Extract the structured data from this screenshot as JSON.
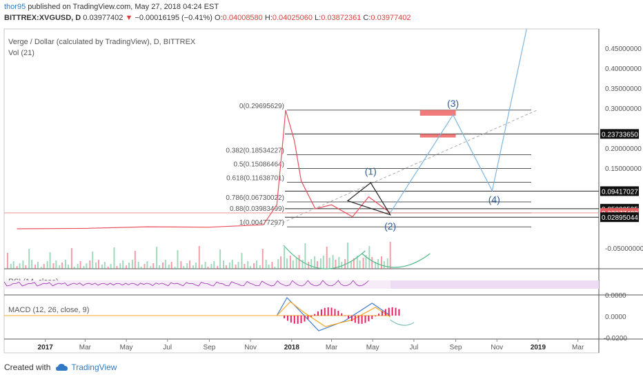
{
  "header": {
    "user": "thor95",
    "published": "published on TradingView.com, May 27, 2018 04:24 EST",
    "symbol": "BITTREX:XVGUSD, D",
    "last": "0.03977402",
    "arrow": "▼",
    "change": "−0.00016195 (−0.41%)",
    "o_label": "O:",
    "o_val": "0.04008580",
    "h_label": "H:",
    "h_val": "0.04025060",
    "l_label": "L:",
    "l_val": "0.03872361",
    "c_label": "C:",
    "c_val": "0.03977402"
  },
  "footer": {
    "created_with": "Created with",
    "brand": "TradingView"
  },
  "colors": {
    "candle_up": "#53b987",
    "candle_down": "#eb4d5c",
    "price_line": "#9b9b9b",
    "fib_line": "#555555",
    "projection": "#7fb6e0",
    "wave_label": "#2a5a96",
    "target_box": "#f07a7a",
    "rsi": "#9c27b0",
    "rsi_band": "#eedcf4",
    "macd": "#3f7bd0",
    "signal": "#f5a623",
    "hist": "#e91e63",
    "volume_avg": "#ff9b6b"
  },
  "chart_data": {
    "type": "line",
    "title": "Verge / Dollar (calculated by TradingView), D, BITTREX",
    "subtitle": "Vol (21)",
    "x_ticks": [
      "2017",
      "Mar",
      "May",
      "Jul",
      "Sep",
      "Nov",
      "2018",
      "Mar",
      "May",
      "Jul",
      "Sep",
      "Nov",
      "2019",
      "Mar"
    ],
    "x_range": [
      "2016-11",
      "2019-04"
    ],
    "y_range": [
      -0.1,
      0.5
    ],
    "y_ticks": [
      "0.45000000",
      "0.40000000",
      "0.35000000",
      "0.30000000",
      "0.20000000",
      "0.15000000",
      "-0.05000000"
    ],
    "price_series_approx": [
      {
        "x": "2016-11-20",
        "y": 0.0
      },
      {
        "x": "2017-03-01",
        "y": 0.001
      },
      {
        "x": "2017-06-01",
        "y": 0.005
      },
      {
        "x": "2017-09-01",
        "y": 0.004
      },
      {
        "x": "2017-11-20",
        "y": 0.01
      },
      {
        "x": "2017-12-10",
        "y": 0.06
      },
      {
        "x": "2017-12-20",
        "y": 0.24
      },
      {
        "x": "2017-12-23",
        "y": 0.297
      },
      {
        "x": "2018-01-05",
        "y": 0.22
      },
      {
        "x": "2018-01-15",
        "y": 0.12
      },
      {
        "x": "2018-02-05",
        "y": 0.05
      },
      {
        "x": "2018-03-01",
        "y": 0.06
      },
      {
        "x": "2018-04-01",
        "y": 0.03
      },
      {
        "x": "2018-04-25",
        "y": 0.08
      },
      {
        "x": "2018-05-27",
        "y": 0.0398
      }
    ],
    "fib_levels": [
      {
        "label": "0(0.29695629)",
        "value": 0.29695629
      },
      {
        "label": "0.382(0.18534227)",
        "value": 0.18534227
      },
      {
        "label": "0.5(0.15086464)",
        "value": 0.15086464
      },
      {
        "label": "0.618(0.11638701)",
        "value": 0.11638701
      },
      {
        "label": "0.786(0.06730022)",
        "value": 0.06730022
      },
      {
        "label": "0.88(0.03983499)",
        "value": 0.03983499
      },
      {
        "label": "1(0.00477297)",
        "value": 0.00477297
      }
    ],
    "price_labels": [
      {
        "text": "0.23733650",
        "value": 0.2373365
      },
      {
        "text": "0.09417027",
        "value": 0.09417027
      },
      {
        "text": "0.05020595",
        "value": 0.05020595
      },
      {
        "text": "0.03977402",
        "value": 0.03977402,
        "highlight": true
      },
      {
        "text": "0.02895044",
        "value": 0.02895044
      }
    ],
    "waves": [
      {
        "label": "(1)",
        "x": "2018-04-28",
        "y": 0.135
      },
      {
        "label": "(2)",
        "x": "2018-05-27",
        "y": -0.002
      },
      {
        "label": "(3)",
        "x": "2018-08-28",
        "y": 0.305
      },
      {
        "label": "(4)",
        "x": "2018-10-28",
        "y": 0.065
      }
    ],
    "projection_path": [
      {
        "x": "2018-05-27",
        "y": 0.04
      },
      {
        "x": "2018-08-28",
        "y": 0.285
      },
      {
        "x": "2018-10-25",
        "y": 0.095
      },
      {
        "x": "2018-12-15",
        "y": 0.5
      }
    ],
    "rsi": {
      "label": "RSI (14, close)",
      "tick": "0.0000"
    },
    "macd": {
      "label": "MACD (12, 26, close, 9)",
      "ticks": [
        "0.0000",
        "-0.0200"
      ]
    }
  }
}
